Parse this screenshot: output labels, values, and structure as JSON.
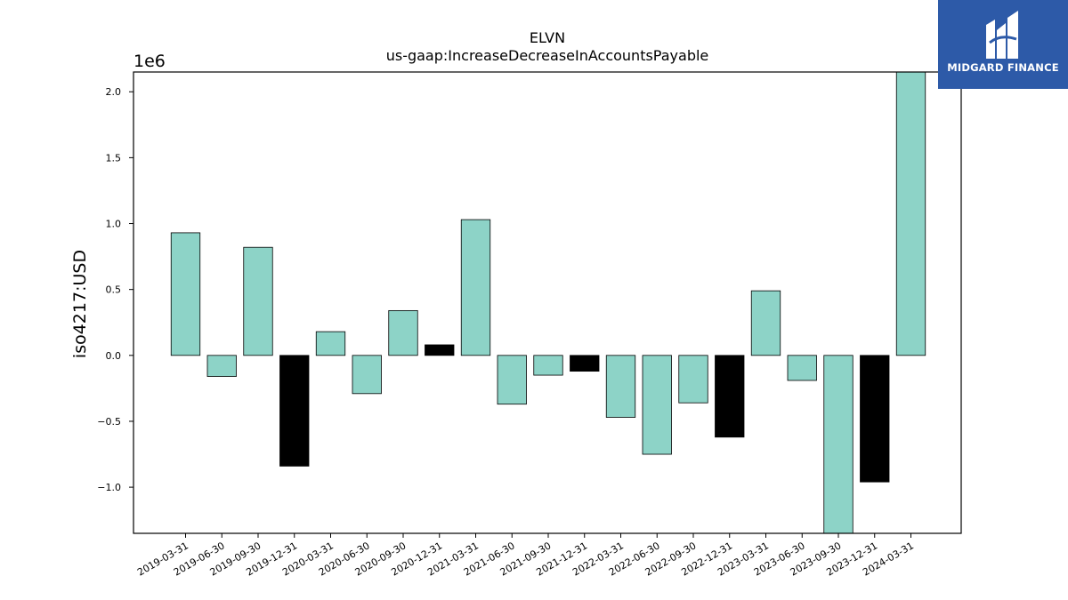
{
  "chart_data": {
    "type": "bar",
    "title": "ELVN",
    "subtitle": "us-gaap:IncreaseDecreaseInAccountsPayable",
    "ylabel": "iso4217:USD",
    "xlabel": "",
    "scale_label": "1e6",
    "ylim": [
      -1.35,
      2.15
    ],
    "yticks": [
      -1.0,
      -0.5,
      0.0,
      0.5,
      1.0,
      1.5,
      2.0
    ],
    "ytick_labels": [
      "−1.0",
      "−0.5",
      "0.0",
      "0.5",
      "1.0",
      "1.5",
      "2.0"
    ],
    "categories": [
      "2019-03-31",
      "2019-06-30",
      "2019-09-30",
      "2019-12-31",
      "2020-03-31",
      "2020-06-30",
      "2020-09-30",
      "2020-12-31",
      "2021-03-31",
      "2021-06-30",
      "2021-09-30",
      "2021-12-31",
      "2022-03-31",
      "2022-06-30",
      "2022-09-30",
      "2022-12-31",
      "2023-03-31",
      "2023-06-30",
      "2023-09-30",
      "2023-12-31",
      "2024-03-31"
    ],
    "values": [
      0.93,
      -0.16,
      0.82,
      -0.84,
      0.18,
      -0.29,
      0.34,
      0.08,
      1.03,
      -0.37,
      -0.15,
      -0.12,
      -0.47,
      -0.75,
      -0.36,
      -0.62,
      0.49,
      -0.19,
      -1.35,
      -0.96,
      2.15
    ],
    "bar_colors": [
      "#8dd3c7",
      "#8dd3c7",
      "#8dd3c7",
      "#000000",
      "#8dd3c7",
      "#8dd3c7",
      "#8dd3c7",
      "#000000",
      "#8dd3c7",
      "#8dd3c7",
      "#8dd3c7",
      "#000000",
      "#8dd3c7",
      "#8dd3c7",
      "#8dd3c7",
      "#000000",
      "#8dd3c7",
      "#8dd3c7",
      "#8dd3c7",
      "#000000",
      "#8dd3c7"
    ],
    "grid": false,
    "legend": "none"
  },
  "logo": {
    "text": "MIDGARD FINANCE",
    "color": "#2d5aa8"
  }
}
